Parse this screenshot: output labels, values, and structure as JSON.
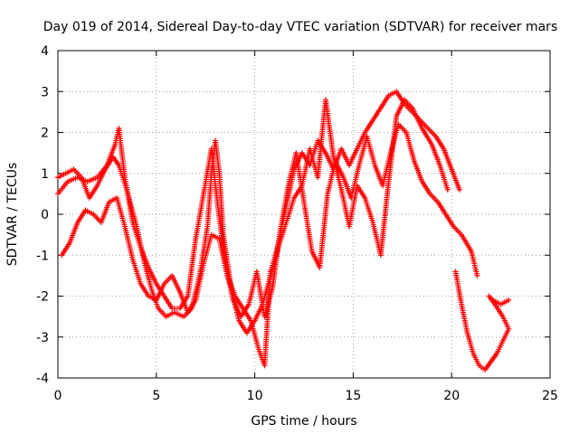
{
  "chart_data": {
    "type": "scatter",
    "title": "Day 019 of 2014, Sidereal Day-to-day VTEC variation (SDTVAR) for receiver mars",
    "xlabel": "GPS time / hours",
    "ylabel": "SDTVAR / TECUs",
    "xlim": [
      0,
      25
    ],
    "ylim": [
      -4,
      4
    ],
    "xticks": [
      0,
      5,
      10,
      15,
      20,
      25
    ],
    "yticks": [
      -4,
      -3,
      -2,
      -1,
      0,
      1,
      2,
      3,
      4
    ],
    "grid": true,
    "marker": "plus",
    "color": "#ff0000",
    "series": [
      {
        "name": "track-1",
        "points": [
          [
            0.0,
            0.9
          ],
          [
            0.4,
            1.0
          ],
          [
            0.8,
            1.1
          ],
          [
            1.2,
            0.9
          ],
          [
            1.6,
            0.4
          ],
          [
            2.0,
            0.7
          ],
          [
            2.4,
            1.1
          ],
          [
            2.8,
            1.4
          ],
          [
            3.1,
            1.2
          ],
          [
            3.5,
            0.6
          ],
          [
            4.0,
            -0.3
          ],
          [
            4.4,
            -1.2
          ],
          [
            4.8,
            -1.9
          ],
          [
            5.1,
            -2.3
          ],
          [
            5.5,
            -2.5
          ],
          [
            5.9,
            -2.4
          ],
          [
            6.4,
            -2.5
          ],
          [
            6.8,
            -2.3
          ],
          [
            7.2,
            -1.5
          ],
          [
            7.6,
            -0.3
          ],
          [
            7.8,
            1.0
          ],
          [
            8.0,
            1.8
          ],
          [
            8.2,
            1.0
          ],
          [
            8.4,
            -0.5
          ],
          [
            8.8,
            -1.8
          ],
          [
            9.2,
            -2.6
          ],
          [
            9.6,
            -2.9
          ],
          [
            10.0,
            -2.6
          ],
          [
            10.4,
            -2.2
          ],
          [
            10.8,
            -1.5
          ],
          [
            11.2,
            -0.7
          ],
          [
            11.6,
            0.2
          ],
          [
            12.0,
            1.1
          ],
          [
            12.4,
            1.5
          ],
          [
            12.8,
            1.2
          ],
          [
            13.2,
            1.8
          ],
          [
            13.6,
            1.5
          ],
          [
            14.0,
            1.1
          ],
          [
            14.4,
            1.6
          ],
          [
            14.8,
            1.2
          ],
          [
            15.2,
            1.6
          ],
          [
            15.6,
            2.0
          ],
          [
            16.0,
            2.3
          ],
          [
            16.4,
            2.6
          ],
          [
            16.8,
            2.9
          ],
          [
            17.2,
            3.0
          ],
          [
            17.6,
            2.7
          ],
          [
            18.0,
            2.5
          ],
          [
            18.4,
            2.3
          ],
          [
            18.8,
            2.1
          ],
          [
            19.2,
            1.9
          ],
          [
            19.6,
            1.6
          ],
          [
            20.0,
            1.1
          ],
          [
            20.4,
            0.6
          ]
        ]
      },
      {
        "name": "track-2",
        "points": [
          [
            0.0,
            0.5
          ],
          [
            0.5,
            0.8
          ],
          [
            1.0,
            0.9
          ],
          [
            1.5,
            0.8
          ],
          [
            2.0,
            0.9
          ],
          [
            2.5,
            1.2
          ],
          [
            2.9,
            1.7
          ],
          [
            3.1,
            2.1
          ],
          [
            3.4,
            0.9
          ],
          [
            3.8,
            -0.2
          ],
          [
            4.2,
            -0.8
          ],
          [
            4.6,
            -1.3
          ],
          [
            5.0,
            -1.7
          ],
          [
            5.4,
            -2.0
          ],
          [
            5.8,
            -2.3
          ],
          [
            6.2,
            -2.3
          ],
          [
            6.6,
            -2.0
          ],
          [
            7.0,
            -0.6
          ],
          [
            7.4,
            0.5
          ],
          [
            7.8,
            1.6
          ],
          [
            8.1,
            0.3
          ],
          [
            8.5,
            -1.2
          ],
          [
            8.9,
            -2.1
          ],
          [
            9.3,
            -2.5
          ],
          [
            9.7,
            -2.2
          ],
          [
            10.1,
            -1.4
          ],
          [
            10.5,
            -2.5
          ],
          [
            10.9,
            -1.8
          ],
          [
            11.3,
            -0.4
          ],
          [
            11.7,
            0.7
          ],
          [
            12.1,
            1.5
          ],
          [
            12.5,
            0.3
          ],
          [
            12.9,
            -0.9
          ],
          [
            13.3,
            -1.3
          ],
          [
            13.7,
            0.5
          ],
          [
            14.1,
            1.3
          ],
          [
            14.5,
            0.9
          ],
          [
            14.9,
            0.4
          ],
          [
            15.3,
            1.2
          ],
          [
            15.7,
            1.9
          ],
          [
            16.1,
            1.2
          ],
          [
            16.5,
            0.7
          ],
          [
            16.9,
            1.5
          ],
          [
            17.3,
            2.2
          ],
          [
            17.7,
            2.0
          ],
          [
            18.1,
            1.3
          ],
          [
            18.5,
            0.8
          ],
          [
            18.9,
            0.5
          ],
          [
            19.3,
            0.3
          ],
          [
            19.7,
            0.0
          ],
          [
            20.1,
            -0.3
          ],
          [
            20.5,
            -0.5
          ],
          [
            21.0,
            -0.9
          ],
          [
            21.3,
            -1.5
          ]
        ]
      },
      {
        "name": "track-3",
        "points": [
          [
            0.2,
            -1.0
          ],
          [
            0.6,
            -0.7
          ],
          [
            1.0,
            -0.2
          ],
          [
            1.4,
            0.1
          ],
          [
            1.8,
            0.0
          ],
          [
            2.2,
            -0.2
          ],
          [
            2.6,
            0.3
          ],
          [
            3.0,
            0.4
          ],
          [
            3.4,
            -0.3
          ],
          [
            3.8,
            -1.1
          ],
          [
            4.2,
            -1.7
          ],
          [
            4.6,
            -2.0
          ],
          [
            5.0,
            -2.1
          ],
          [
            5.4,
            -1.7
          ],
          [
            5.8,
            -1.5
          ],
          [
            6.2,
            -1.9
          ],
          [
            6.6,
            -2.4
          ],
          [
            7.0,
            -2.1
          ],
          [
            7.4,
            -1.2
          ],
          [
            7.8,
            -0.5
          ],
          [
            8.2,
            -0.6
          ],
          [
            8.6,
            -1.5
          ],
          [
            9.0,
            -2.0
          ],
          [
            9.4,
            -2.3
          ],
          [
            9.8,
            -2.6
          ],
          [
            10.2,
            -3.3
          ],
          [
            10.5,
            -3.7
          ],
          [
            10.8,
            -1.4
          ],
          [
            11.2,
            -0.8
          ],
          [
            11.6,
            -0.2
          ],
          [
            12.0,
            0.4
          ],
          [
            12.4,
            0.7
          ],
          [
            12.8,
            1.6
          ],
          [
            13.2,
            0.9
          ],
          [
            13.6,
            2.8
          ],
          [
            14.0,
            1.4
          ],
          [
            14.4,
            0.6
          ],
          [
            14.8,
            -0.3
          ],
          [
            15.2,
            0.7
          ],
          [
            15.6,
            0.4
          ],
          [
            16.0,
            -0.2
          ],
          [
            16.4,
            -1.0
          ],
          [
            16.8,
            0.8
          ],
          [
            17.2,
            2.4
          ],
          [
            17.6,
            2.8
          ],
          [
            18.0,
            2.6
          ],
          [
            18.5,
            2.1
          ],
          [
            19.0,
            1.7
          ],
          [
            19.4,
            1.2
          ],
          [
            19.8,
            0.6
          ]
        ]
      },
      {
        "name": "track-4",
        "points": [
          [
            20.2,
            -1.4
          ],
          [
            20.5,
            -2.2
          ],
          [
            20.8,
            -2.9
          ],
          [
            21.1,
            -3.4
          ],
          [
            21.4,
            -3.7
          ],
          [
            21.7,
            -3.8
          ],
          [
            22.0,
            -3.6
          ],
          [
            22.3,
            -3.4
          ],
          [
            22.6,
            -3.1
          ],
          [
            22.9,
            -2.8
          ],
          [
            22.6,
            -2.5
          ],
          [
            22.2,
            -2.2
          ],
          [
            21.9,
            -2.0
          ],
          [
            22.1,
            -2.1
          ],
          [
            22.5,
            -2.2
          ],
          [
            22.9,
            -2.1
          ]
        ]
      }
    ]
  }
}
